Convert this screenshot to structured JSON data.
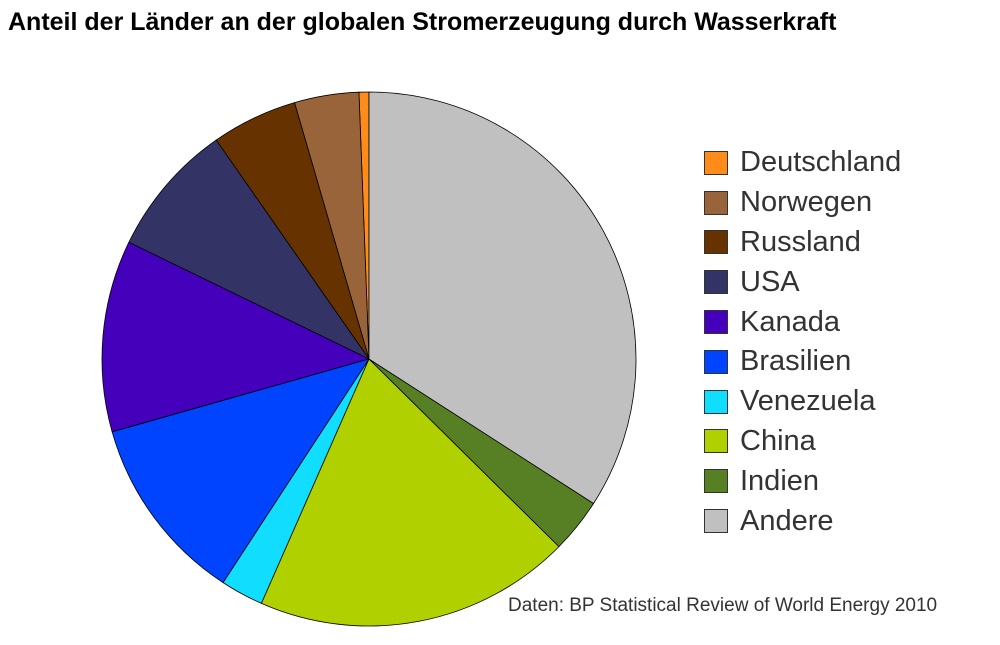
{
  "chart_data": {
    "type": "pie",
    "title": "Anteil der Länder an der globalen Stromerzeugung durch Wasserkraft",
    "source": "Daten: BP Statistical Review of World Energy 2010",
    "legend_position": "right",
    "slices": [
      {
        "label": "Deutschland",
        "value": 0.6,
        "color": "#ff8c1a"
      },
      {
        "label": "Norwegen",
        "value": 3.9,
        "color": "#99643a"
      },
      {
        "label": "Russland",
        "value": 5.2,
        "color": "#663300"
      },
      {
        "label": "USA",
        "value": 8.1,
        "color": "#333366"
      },
      {
        "label": "Kanada",
        "value": 11.6,
        "color": "#4400bb"
      },
      {
        "label": "Brasilien",
        "value": 11.4,
        "color": "#0044ff"
      },
      {
        "label": "Venezuela",
        "value": 2.6,
        "color": "#11ddff"
      },
      {
        "label": "China",
        "value": 19.2,
        "color": "#b0d000"
      },
      {
        "label": "Indien",
        "value": 3.3,
        "color": "#578024"
      },
      {
        "label": "Andere",
        "value": 34.1,
        "color": "#c0c0c0"
      }
    ]
  }
}
